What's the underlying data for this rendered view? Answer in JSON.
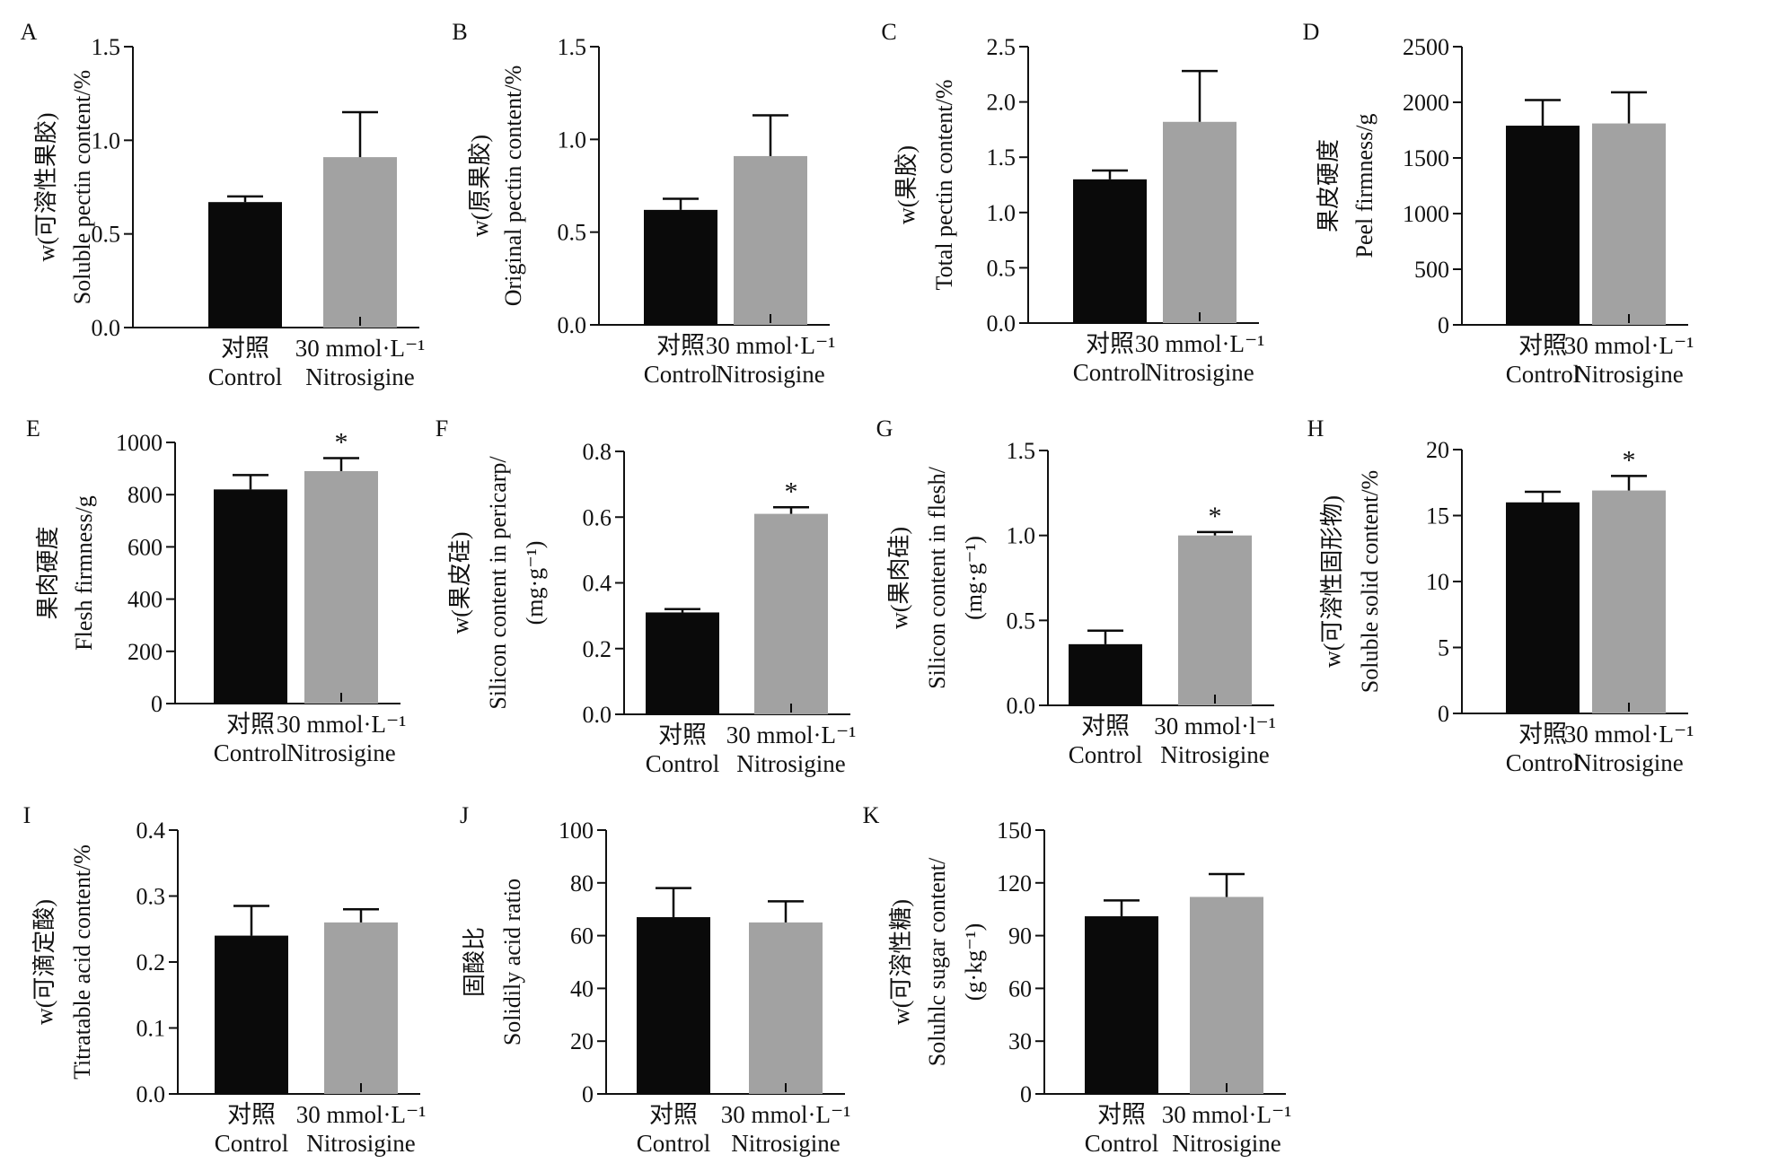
{
  "figure": {
    "colors": {
      "control": "#0a0a0a",
      "treatment": "#a2a2a2",
      "axis": "#111111"
    }
  },
  "chart_data": [
    {
      "panel": "A",
      "type": "bar",
      "ylabel_lines": [
        "w(可溶性果胶)",
        "Soluble pectin content/%"
      ],
      "categories": [
        [
          "对照",
          "Control"
        ],
        [
          "30 mmol·L⁻¹",
          "Nitrosigine"
        ]
      ],
      "values": [
        0.67,
        0.91
      ],
      "errors": [
        0.03,
        0.24
      ],
      "significance": [
        "",
        ""
      ],
      "ylim": [
        0,
        1.5
      ],
      "yticks": [
        0.0,
        0.5,
        1.0,
        1.5
      ],
      "tick_decimals": 1
    },
    {
      "panel": "B",
      "type": "bar",
      "ylabel_lines": [
        "w(原果胶)",
        "Original pectin content/%"
      ],
      "categories": [
        [
          "对照",
          "Control"
        ],
        [
          "30 mmol·L⁻¹",
          "Nitrosigine"
        ]
      ],
      "values": [
        0.62,
        0.91
      ],
      "errors": [
        0.06,
        0.22
      ],
      "significance": [
        "",
        ""
      ],
      "ylim": [
        0,
        1.5
      ],
      "yticks": [
        0.0,
        0.5,
        1.0,
        1.5
      ],
      "tick_decimals": 1
    },
    {
      "panel": "C",
      "type": "bar",
      "ylabel_lines": [
        "w(果胶)",
        "Total pectin content/%"
      ],
      "categories": [
        [
          "对照",
          "Control"
        ],
        [
          "30 mmol·L⁻¹",
          "Nitrosigine"
        ]
      ],
      "values": [
        1.3,
        1.82
      ],
      "errors": [
        0.08,
        0.46
      ],
      "significance": [
        "",
        ""
      ],
      "ylim": [
        0,
        2.5
      ],
      "yticks": [
        0.0,
        0.5,
        1.0,
        1.5,
        2.0,
        2.5
      ],
      "tick_decimals": 1
    },
    {
      "panel": "D",
      "type": "bar",
      "ylabel_lines": [
        "果皮硬度",
        "Peel firmness/g"
      ],
      "categories": [
        [
          "对照",
          "Control"
        ],
        [
          "30 mmol·L⁻¹",
          "Nitrosigine"
        ]
      ],
      "values": [
        1790,
        1810
      ],
      "errors": [
        230,
        280
      ],
      "significance": [
        "",
        ""
      ],
      "ylim": [
        0,
        2500
      ],
      "yticks": [
        0,
        500,
        1000,
        1500,
        2000,
        2500
      ],
      "tick_decimals": 0
    },
    {
      "panel": "E",
      "type": "bar",
      "ylabel_lines": [
        "果肉硬度",
        "Flesh firmness/g"
      ],
      "categories": [
        [
          "对照",
          "Control"
        ],
        [
          "30 mmol·L⁻¹",
          "Nitrosigine"
        ]
      ],
      "values": [
        820,
        890
      ],
      "errors": [
        55,
        50
      ],
      "significance": [
        "",
        "*"
      ],
      "ylim": [
        0,
        1000
      ],
      "yticks": [
        0,
        200,
        400,
        600,
        800,
        1000
      ],
      "tick_decimals": 0
    },
    {
      "panel": "F",
      "type": "bar",
      "ylabel_lines": [
        "w(果皮硅)",
        "Silicon content in pericarp/",
        "(mg·g⁻¹)"
      ],
      "categories": [
        [
          "对照",
          "Control"
        ],
        [
          "30 mmol·L⁻¹",
          "Nitrosigine"
        ]
      ],
      "values": [
        0.31,
        0.61
      ],
      "errors": [
        0.01,
        0.02
      ],
      "significance": [
        "",
        "*"
      ],
      "ylim": [
        0,
        0.8
      ],
      "yticks": [
        0.0,
        0.2,
        0.4,
        0.6,
        0.8
      ],
      "tick_decimals": 1
    },
    {
      "panel": "G",
      "type": "bar",
      "ylabel_lines": [
        "w(果肉硅)",
        "Silicon content in flesh/",
        "(mg·g⁻¹)"
      ],
      "categories": [
        [
          "对照",
          "Control"
        ],
        [
          "30 mmol·l⁻¹",
          "Nitrosigine"
        ]
      ],
      "values": [
        0.36,
        1.0
      ],
      "errors": [
        0.08,
        0.02
      ],
      "significance": [
        "",
        "*"
      ],
      "ylim": [
        0,
        1.5
      ],
      "yticks": [
        0.0,
        0.5,
        1.0,
        1.5
      ],
      "tick_decimals": 1
    },
    {
      "panel": "H",
      "type": "bar",
      "ylabel_lines": [
        "w(可溶性固形物)",
        "Soluble solid content/%"
      ],
      "categories": [
        [
          "对照",
          "Control"
        ],
        [
          "30 mmol·L⁻¹",
          "Nitrosigine"
        ]
      ],
      "values": [
        16.0,
        16.9
      ],
      "errors": [
        0.8,
        1.1
      ],
      "significance": [
        "",
        "*"
      ],
      "ylim": [
        0,
        20
      ],
      "yticks": [
        0,
        5,
        10,
        15,
        20
      ],
      "tick_decimals": 0
    },
    {
      "panel": "I",
      "type": "bar",
      "ylabel_lines": [
        "w(可滴定酸)",
        "Titratable acid content/%"
      ],
      "categories": [
        [
          "对照",
          "Control"
        ],
        [
          "30 mmol·L⁻¹",
          "Nitrosigine"
        ]
      ],
      "values": [
        0.24,
        0.26
      ],
      "errors": [
        0.045,
        0.02
      ],
      "significance": [
        "",
        ""
      ],
      "ylim": [
        0,
        0.4
      ],
      "yticks": [
        0.0,
        0.1,
        0.2,
        0.3,
        0.4
      ],
      "tick_decimals": 1
    },
    {
      "panel": "J",
      "type": "bar",
      "ylabel_lines": [
        "固酸比",
        "Solidily acid ratio"
      ],
      "categories": [
        [
          "对照",
          "Control"
        ],
        [
          "30 mmol·L⁻¹",
          "Nitrosigine"
        ]
      ],
      "values": [
        67,
        65
      ],
      "errors": [
        11,
        8
      ],
      "significance": [
        "",
        ""
      ],
      "ylim": [
        0,
        100
      ],
      "yticks": [
        0,
        20,
        40,
        60,
        80,
        100
      ],
      "tick_decimals": 0
    },
    {
      "panel": "K",
      "type": "bar",
      "ylabel_lines": [
        "w(可溶性糖)",
        "Soluhlc sugar content/",
        "(g·kg⁻¹)"
      ],
      "categories": [
        [
          "对照",
          "Control"
        ],
        [
          "30 mmol·L⁻¹",
          "Nitrosigine"
        ]
      ],
      "values": [
        101,
        112
      ],
      "errors": [
        9,
        13
      ],
      "significance": [
        "",
        ""
      ],
      "ylim": [
        0,
        150
      ],
      "yticks": [
        0,
        30,
        60,
        90,
        120,
        150
      ],
      "tick_decimals": 0
    }
  ]
}
